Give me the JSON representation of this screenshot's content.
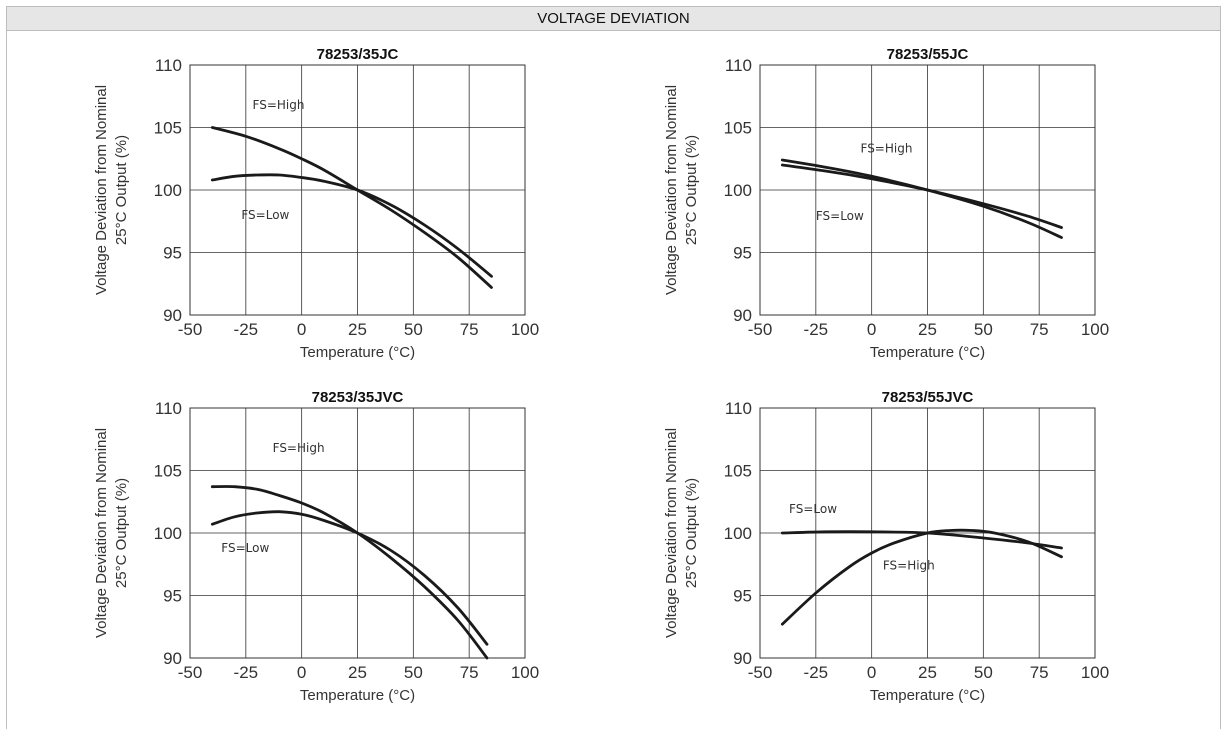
{
  "header": {
    "title": "VOLTAGE DEVIATION"
  },
  "chart_data": [
    {
      "type": "line",
      "title": "78253/35JC",
      "xlabel": "Temperature (°C)",
      "ylabel": [
        "Voltage Deviation from Nominal",
        "25°C Output (%)"
      ],
      "xlim": [
        -50,
        100
      ],
      "ylim": [
        90,
        110
      ],
      "xticks": [
        -50,
        -25,
        0,
        25,
        50,
        75,
        100
      ],
      "yticks": [
        90,
        95,
        100,
        105,
        110
      ],
      "grid": true,
      "series": [
        {
          "name": "FS=High",
          "x": [
            -40,
            -25,
            -10,
            0,
            10,
            25,
            40,
            55,
            70,
            85
          ],
          "y": [
            105.0,
            104.3,
            103.3,
            102.5,
            101.6,
            100.0,
            98.4,
            96.6,
            94.6,
            92.2
          ]
        },
        {
          "name": "FS=Low",
          "x": [
            -40,
            -30,
            -20,
            -10,
            0,
            10,
            25,
            40,
            55,
            70,
            85
          ],
          "y": [
            100.8,
            101.1,
            101.2,
            101.2,
            101.0,
            100.7,
            100.0,
            98.8,
            97.2,
            95.3,
            93.1
          ]
        }
      ],
      "annotations": [
        {
          "text": "FS=High",
          "x": -22,
          "y": 106.5
        },
        {
          "text": "FS=Low",
          "x": -27,
          "y": 97.7
        }
      ]
    },
    {
      "type": "line",
      "title": "78253/55JC",
      "xlabel": "Temperature (°C)",
      "ylabel": [
        "Voltage Deviation from Nominal",
        "25°C Output (%)"
      ],
      "xlim": [
        -50,
        100
      ],
      "ylim": [
        90,
        110
      ],
      "xticks": [
        -50,
        -25,
        0,
        25,
        50,
        75,
        100
      ],
      "yticks": [
        90,
        95,
        100,
        105,
        110
      ],
      "grid": true,
      "series": [
        {
          "name": "FS=High",
          "x": [
            -40,
            -20,
            0,
            25,
            50,
            70,
            85
          ],
          "y": [
            102.0,
            101.5,
            100.9,
            100.0,
            98.9,
            97.9,
            97.0
          ]
        },
        {
          "name": "FS=Low",
          "x": [
            -40,
            -20,
            0,
            25,
            50,
            70,
            85
          ],
          "y": [
            102.4,
            101.8,
            101.1,
            100.0,
            98.7,
            97.4,
            96.2
          ]
        }
      ],
      "annotations": [
        {
          "text": "FS=High",
          "x": -5,
          "y": 103.0
        },
        {
          "text": "FS=Low",
          "x": -25,
          "y": 97.6
        }
      ]
    },
    {
      "type": "line",
      "title": "78253/35JVC",
      "xlabel": "Temperature (°C)",
      "ylabel": [
        "Voltage Deviation from Nominal",
        "25°C Output (%)"
      ],
      "xlim": [
        -50,
        100
      ],
      "ylim": [
        90,
        110
      ],
      "xticks": [
        -50,
        -25,
        0,
        25,
        50,
        75,
        100
      ],
      "yticks": [
        90,
        95,
        100,
        105,
        110
      ],
      "grid": true,
      "series": [
        {
          "name": "FS=High",
          "x": [
            -40,
            -30,
            -20,
            -10,
            0,
            10,
            25,
            40,
            55,
            70,
            83
          ],
          "y": [
            103.7,
            103.7,
            103.5,
            103.0,
            102.4,
            101.6,
            100.0,
            98.0,
            95.7,
            93.0,
            90.0
          ]
        },
        {
          "name": "FS=Low",
          "x": [
            -40,
            -30,
            -20,
            -10,
            0,
            10,
            25,
            40,
            55,
            70,
            83
          ],
          "y": [
            100.7,
            101.3,
            101.6,
            101.7,
            101.5,
            101.0,
            100.0,
            98.6,
            96.6,
            94.0,
            91.1
          ]
        }
      ],
      "annotations": [
        {
          "text": "FS=High",
          "x": -13,
          "y": 106.5
        },
        {
          "text": "FS=Low",
          "x": -36,
          "y": 98.5
        }
      ]
    },
    {
      "type": "line",
      "title": "78253/55JVC",
      "xlabel": "Temperature (°C)",
      "ylabel": [
        "Voltage Deviation from Nominal",
        "25°C Output (%)"
      ],
      "xlim": [
        -50,
        100
      ],
      "ylim": [
        90,
        110
      ],
      "xticks": [
        -50,
        -25,
        0,
        25,
        50,
        75,
        100
      ],
      "yticks": [
        90,
        95,
        100,
        105,
        110
      ],
      "grid": true,
      "series": [
        {
          "name": "FS=High",
          "x": [
            -40,
            -25,
            -10,
            0,
            10,
            25,
            35,
            45,
            55,
            70,
            85
          ],
          "y": [
            92.7,
            95.2,
            97.3,
            98.4,
            99.2,
            100.0,
            100.2,
            100.2,
            100.0,
            99.3,
            98.1
          ]
        },
        {
          "name": "FS=Low",
          "x": [
            -40,
            -20,
            0,
            25,
            50,
            70,
            85
          ],
          "y": [
            100.0,
            100.1,
            100.1,
            100.0,
            99.6,
            99.2,
            98.8
          ]
        }
      ],
      "annotations": [
        {
          "text": "FS=Low",
          "x": -37,
          "y": 101.6
        },
        {
          "text": "FS=High",
          "x": 5,
          "y": 97.1
        }
      ]
    }
  ]
}
